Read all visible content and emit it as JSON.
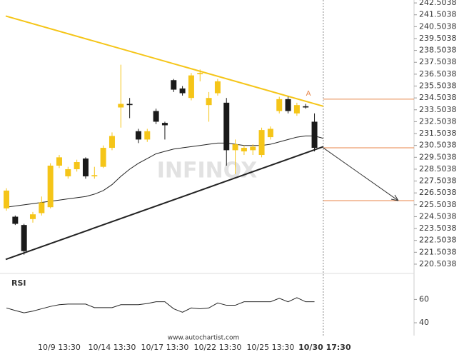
{
  "chart_data": {
    "type": "candlestick",
    "watermark": "INFINOX",
    "footer": "www.autochartist.com",
    "categories": [
      null,
      null,
      null,
      null,
      null,
      null,
      "10/9 13:30",
      null,
      null,
      null,
      null,
      null,
      "10/14 13:30",
      null,
      null,
      null,
      null,
      null,
      "10/17 13:30",
      null,
      null,
      null,
      null,
      null,
      "10/22 13:30",
      null,
      null,
      null,
      null,
      null,
      "10/25 13:30",
      null,
      null,
      null,
      null,
      null,
      "10/30 17:30"
    ],
    "open": [
      225.2,
      224.5,
      223.8,
      224.3,
      224.8,
      225.3,
      228.8,
      227.9,
      228.5,
      229.4,
      227.9,
      228.7,
      230.3,
      233.7,
      234.0,
      231.7,
      231.0,
      233.4,
      232.4,
      236.0,
      235.3,
      234.5,
      236.5,
      233.9,
      234.9,
      234.1,
      230.1,
      230.0,
      230.1,
      229.7,
      231.2,
      233.4,
      234.4,
      233.2,
      233.8,
      232.5,
      null
    ],
    "high": [
      226.9,
      224.6,
      223.9,
      224.9,
      226.2,
      229.0,
      229.7,
      228.7,
      229.3,
      229.5,
      228.7,
      230.5,
      231.6,
      237.3,
      234.5,
      231.9,
      231.9,
      233.6,
      232.5,
      236.1,
      235.5,
      236.6,
      236.9,
      235.0,
      236.1,
      234.5,
      231.0,
      230.5,
      230.6,
      232.0,
      232.1,
      234.6,
      234.6,
      234.1,
      234.0,
      233.2,
      null
    ],
    "low": [
      225.0,
      223.8,
      221.3,
      224.0,
      224.6,
      225.2,
      228.6,
      227.7,
      228.3,
      227.7,
      227.7,
      228.6,
      230.1,
      232.0,
      232.8,
      230.7,
      230.8,
      232.3,
      231.0,
      235.0,
      234.7,
      234.3,
      235.9,
      232.5,
      234.7,
      228.8,
      228.1,
      229.7,
      229.7,
      229.5,
      231.0,
      233.2,
      233.2,
      233.0,
      233.6,
      230.0,
      null
    ],
    "close": [
      226.7,
      223.9,
      221.6,
      224.7,
      225.7,
      228.8,
      229.5,
      228.5,
      229.1,
      227.9,
      228.0,
      230.3,
      231.3,
      234.0,
      233.9,
      231.0,
      231.7,
      232.5,
      232.2,
      235.2,
      234.9,
      236.4,
      236.6,
      234.5,
      235.9,
      230.1,
      230.6,
      230.3,
      230.4,
      231.8,
      231.9,
      234.4,
      233.4,
      233.9,
      233.7,
      230.3,
      null
    ],
    "ma": [
      225.3,
      225.4,
      225.5,
      225.6,
      225.7,
      225.8,
      225.9,
      226.0,
      226.1,
      226.2,
      226.4,
      226.7,
      227.2,
      227.9,
      228.5,
      229.0,
      229.4,
      229.8,
      230.0,
      230.2,
      230.3,
      230.4,
      230.5,
      230.6,
      230.7,
      230.7,
      230.6,
      230.5,
      230.5,
      230.5,
      230.6,
      230.8,
      231.0,
      231.2,
      231.3,
      231.3,
      231.1
    ],
    "up_color": "#f5c518",
    "down_color": "#1a1a1a",
    "ma_color": "#222222",
    "resistance": {
      "values": [
        241.4,
        233.8
      ],
      "color": "#f5c518"
    },
    "support": {
      "values": [
        220.9,
        230.4
      ],
      "color": "#222222"
    },
    "levels": {
      "values": [
        234.4,
        230.3,
        225.85
      ],
      "color": "#e8864a"
    },
    "annotation": "A",
    "ylim": [
      219.9,
      242.75
    ],
    "yticks": [
      220.5038,
      221.5038,
      222.5038,
      223.5038,
      224.5038,
      225.5038,
      226.5038,
      227.5038,
      228.5038,
      229.5038,
      230.5038,
      231.5038,
      232.5038,
      233.5038,
      234.5038,
      235.5038,
      236.5038,
      237.5038,
      238.5038,
      239.5038,
      240.5038,
      241.5038,
      242.5038
    ],
    "rsi": {
      "label": "RSI",
      "values": [
        52.7,
        50.5,
        48.5,
        50,
        52,
        54,
        55.5,
        56,
        56,
        56,
        53,
        53,
        53,
        55.5,
        55.5,
        55.5,
        56.5,
        58,
        58,
        52,
        49,
        52.7,
        52,
        52.7,
        57,
        55,
        55,
        58,
        58,
        58,
        58,
        61,
        58,
        61.5,
        58,
        58,
        null
      ],
      "ylim": [
        29,
        78
      ],
      "yticks": [
        40,
        60
      ]
    }
  }
}
